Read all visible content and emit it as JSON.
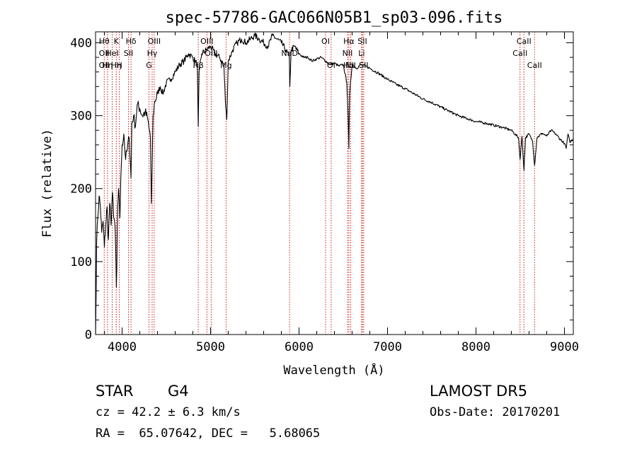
{
  "chart_data": {
    "type": "line",
    "title": "spec-57786-GAC066N05B1_sp03-096.fits",
    "xlabel": "Wavelength (Å)",
    "ylabel": "Flux (relative)",
    "xlim": [
      3700,
      9100
    ],
    "ylim": [
      0,
      415
    ],
    "xticks": [
      4000,
      5000,
      6000,
      7000,
      8000,
      9000
    ],
    "yticks": [
      0,
      100,
      200,
      300,
      400
    ],
    "grid": false,
    "series": [
      {
        "x": [
          3700,
          3712,
          3725,
          3740,
          3755,
          3770,
          3785,
          3800,
          3815,
          3830,
          3845,
          3860,
          3875,
          3890,
          3905,
          3920,
          3930,
          3935,
          3940,
          3950,
          3960,
          3968,
          3975,
          3990,
          4000,
          4020,
          4040,
          4060,
          4080,
          4101,
          4110,
          4130,
          4150,
          4170,
          4200,
          4230,
          4260,
          4290,
          4320,
          4330,
          4340,
          4350,
          4370,
          4400,
          4430,
          4460,
          4500,
          4550,
          4600,
          4650,
          4700,
          4750,
          4800,
          4850,
          4861,
          4870,
          4900,
          4950,
          5000,
          5050,
          5100,
          5150,
          5167,
          5183,
          5200,
          5250,
          5300,
          5350,
          5400,
          5450,
          5500,
          5550,
          5600,
          5650,
          5700,
          5750,
          5800,
          5850,
          5890,
          5896,
          5910,
          5950,
          6000,
          6050,
          6100,
          6150,
          6200,
          6250,
          6300,
          6350,
          6400,
          6450,
          6500,
          6540,
          6555,
          6563,
          6572,
          6600,
          6650,
          6700,
          6750,
          6800,
          6900,
          7000,
          7100,
          7200,
          7300,
          7400,
          7500,
          7600,
          7700,
          7800,
          7900,
          8000,
          8100,
          8200,
          8300,
          8400,
          8480,
          8498,
          8520,
          8542,
          8560,
          8600,
          8640,
          8662,
          8690,
          8750,
          8800,
          8850,
          8900,
          8950,
          9000,
          9020,
          9040,
          9060,
          9100
        ],
        "values": [
          0,
          125,
          160,
          190,
          175,
          140,
          155,
          120,
          150,
          175,
          130,
          180,
          150,
          195,
          160,
          150,
          100,
          65,
          90,
          175,
          200,
          185,
          160,
          230,
          260,
          275,
          240,
          255,
          270,
          215,
          290,
          300,
          285,
          315,
          310,
          300,
          305,
          295,
          270,
          180,
          230,
          300,
          320,
          330,
          340,
          330,
          345,
          350,
          360,
          370,
          375,
          385,
          380,
          370,
          285,
          360,
          385,
          390,
          395,
          385,
          380,
          370,
          320,
          295,
          375,
          390,
          400,
          405,
          400,
          405,
          410,
          405,
          400,
          395,
          410,
          405,
          400,
          390,
          380,
          340,
          390,
          395,
          385,
          380,
          380,
          375,
          378,
          380,
          375,
          370,
          372,
          368,
          370,
          345,
          300,
          255,
          330,
          370,
          365,
          370,
          368,
          365,
          358,
          350,
          343,
          337,
          330,
          323,
          318,
          312,
          306,
          300,
          296,
          292,
          290,
          287,
          284,
          280,
          270,
          240,
          272,
          225,
          270,
          275,
          265,
          232,
          270,
          276,
          272,
          280,
          275,
          268,
          262,
          255,
          275,
          264,
          268
        ]
      }
    ],
    "line_labels": [
      {
        "x": 3798,
        "labels": [
          "Hθ",
          "OII",
          "OII"
        ]
      },
      {
        "x": 3835,
        "labels": [
          "",
          "",
          "Hη"
        ]
      },
      {
        "x": 3889,
        "labels": [
          "",
          "HeI",
          ""
        ]
      },
      {
        "x": 3934,
        "labels": [
          "K",
          "",
          "Hη"
        ]
      },
      {
        "x": 3969,
        "labels": [
          "",
          "",
          "H"
        ]
      },
      {
        "x": 4072,
        "labels": [
          "",
          "SII",
          ""
        ]
      },
      {
        "x": 4101,
        "labels": [
          "Hδ",
          "",
          ""
        ]
      },
      {
        "x": 4304,
        "labels": [
          "",
          "",
          "G"
        ]
      },
      {
        "x": 4340,
        "labels": [
          "",
          "Hγ",
          ""
        ]
      },
      {
        "x": 4363,
        "labels": [
          "OIII",
          "",
          ""
        ]
      },
      {
        "x": 4861,
        "labels": [
          "",
          "",
          "Hβ"
        ]
      },
      {
        "x": 4959,
        "labels": [
          "OIII",
          "",
          ""
        ]
      },
      {
        "x": 5007,
        "labels": [
          "",
          "OIII",
          ""
        ]
      },
      {
        "x": 5175,
        "labels": [
          "",
          "",
          "Mg"
        ]
      },
      {
        "x": 5893,
        "labels": [
          "",
          "NaD",
          ""
        ]
      },
      {
        "x": 6300,
        "labels": [
          "OI",
          "",
          ""
        ]
      },
      {
        "x": 6363,
        "labels": [
          "",
          "",
          "OI"
        ]
      },
      {
        "x": 6548,
        "labels": [
          "",
          "NII",
          ""
        ]
      },
      {
        "x": 6563,
        "labels": [
          "Hα",
          "",
          "Hα"
        ]
      },
      {
        "x": 6583,
        "labels": [
          "",
          "",
          "NII"
        ]
      },
      {
        "x": 6707,
        "labels": [
          "",
          "Li",
          ""
        ]
      },
      {
        "x": 6716,
        "labels": [
          "SII",
          "",
          ""
        ]
      },
      {
        "x": 6731,
        "labels": [
          "",
          "",
          "SII"
        ]
      },
      {
        "x": 8498,
        "labels": [
          "",
          "CaII",
          ""
        ]
      },
      {
        "x": 8542,
        "labels": [
          "CaII",
          "",
          ""
        ]
      },
      {
        "x": 8662,
        "labels": [
          "",
          "",
          "CaII"
        ]
      }
    ]
  },
  "info": {
    "object_class": "STAR",
    "subclass": "G4",
    "survey": "LAMOST DR5",
    "redshift": "cz = 42.2 ± 6.3 km/s",
    "obs_date": "Obs-Date: 20170201",
    "coords": "RA =  65.07642, DEC =   5.68065"
  },
  "colors": {
    "spectrum": "#000000",
    "line_marker": "#cc0000",
    "axis": "#000000"
  }
}
